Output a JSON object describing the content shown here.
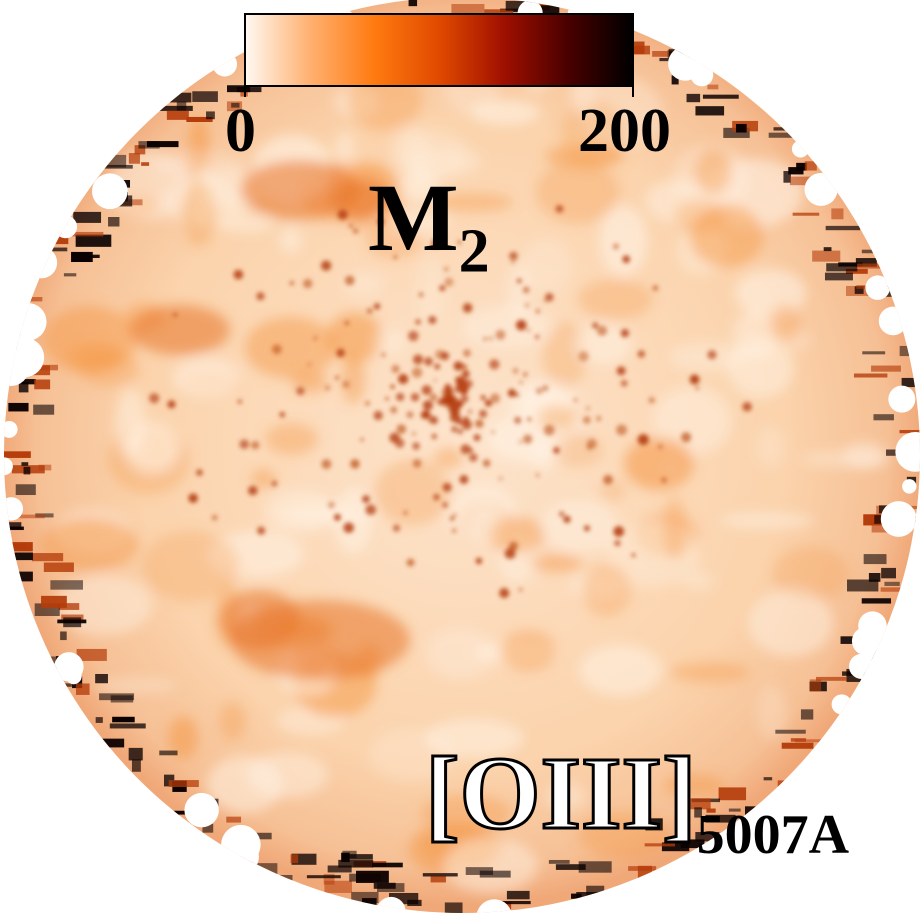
{
  "colorbar": {
    "min_label": "0",
    "max_label": "200",
    "colors": [
      "#fff8f0",
      "#ffb070",
      "#ff7a10",
      "#e04a00",
      "#a01000",
      "#4a0000",
      "#000000"
    ]
  },
  "quantity": {
    "symbol": "M",
    "subscript": "2"
  },
  "emission_line": {
    "ion": "[OIII]",
    "wavelength": "5007A"
  },
  "palette": {
    "background": "#ffffff",
    "disk_base": "#fcd6b0",
    "patch_orange": "#f59a4a",
    "knot_dark": "#b43c0a",
    "edge_black": "#0a0000"
  }
}
